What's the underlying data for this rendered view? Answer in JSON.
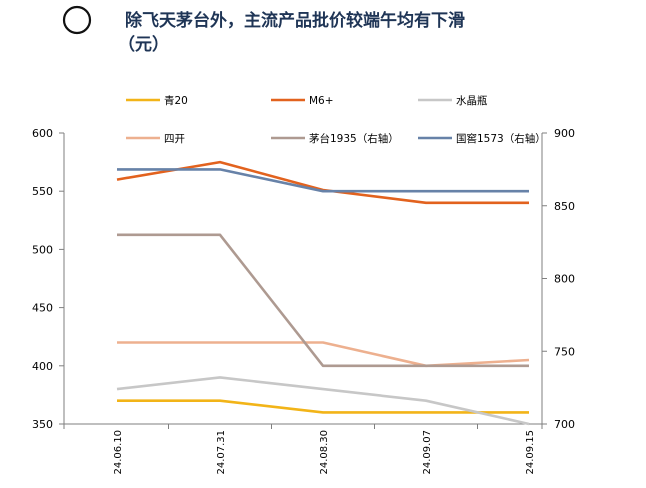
{
  "title_line1": "除飞天茅台外，主流产品批价较端午均有下滑",
  "title_line2": "（元）",
  "chart_data": {
    "type": "line",
    "x": [
      "24.06.10",
      "24.07.31",
      "24.08.30",
      "24.09.07",
      "24.09.15"
    ],
    "left_axis": {
      "ylim": [
        350,
        600
      ],
      "ticks": [
        350,
        400,
        450,
        500,
        550,
        600
      ]
    },
    "right_axis": {
      "ylim": [
        700,
        900
      ],
      "ticks": [
        700,
        750,
        800,
        850,
        900
      ]
    },
    "series": [
      {
        "name": "青20",
        "axis": "left",
        "color": "#F2B418",
        "values": [
          370,
          370,
          360,
          360,
          360
        ]
      },
      {
        "name": "M6+",
        "axis": "left",
        "color": "#E2621E",
        "values": [
          560,
          575,
          551,
          540,
          540
        ]
      },
      {
        "name": "水晶瓶",
        "axis": "left",
        "color": "#C7C7C7",
        "values": [
          380,
          390,
          380,
          370,
          350
        ]
      },
      {
        "name": "四开",
        "axis": "left",
        "color": "#EDB08F",
        "values": [
          420,
          420,
          420,
          400,
          405
        ]
      },
      {
        "name": "茅台1935（右轴）",
        "axis": "right",
        "color": "#AE9A91",
        "values": [
          830,
          830,
          740,
          740,
          740
        ]
      },
      {
        "name": "国窖1573（右轴）",
        "axis": "right",
        "color": "#6782A8",
        "values": [
          875,
          875,
          860,
          860,
          860
        ]
      }
    ],
    "grid": false,
    "legend_position": "top"
  }
}
